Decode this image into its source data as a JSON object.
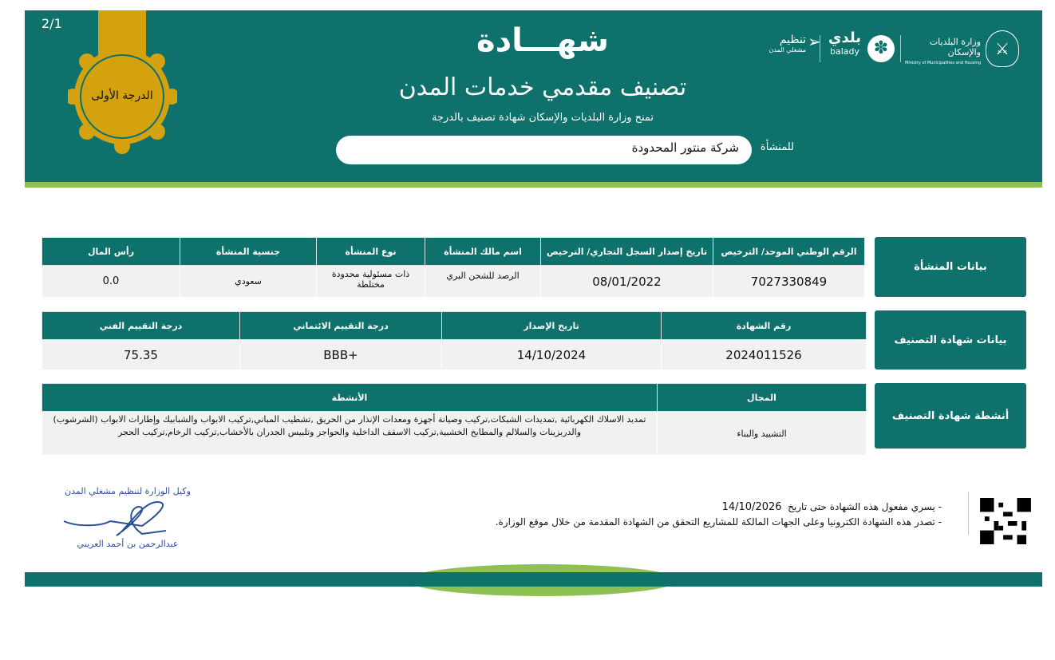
{
  "page_number": "2/1",
  "badge": {
    "grade": "الدرجة الأولى",
    "color": "#d4a10f"
  },
  "header": {
    "title": "شهـــادة",
    "subtitle": "تصنيف مقدمي خدمات المدن",
    "grant_text": "تمنح وزارة البلديات والإسكان شهادة تصنيف بالدرجة",
    "entity_label": "للمنشأة",
    "entity_name": "شركة منتور المحدودة"
  },
  "logos": {
    "tanzeem": "تنظيم",
    "tanzeem_sub": "مشغلي المدن",
    "balady_ar": "بلدي",
    "balady_en": "balady",
    "ministry_ar": "وزارة البلديات والإسكان",
    "ministry_en": "Ministry of Municipalities and Housing"
  },
  "entity_data": {
    "label": "بيانات المنشأة",
    "headers": [
      "الرقم الوطني الموحد/ الترخيص",
      "تاريخ إصدار السجل التجاري/ الترخيص",
      "اسم مالك المنشأة",
      "نوع المنشأة",
      "جنسية المنشأة",
      "رأس المال"
    ],
    "values": [
      "7027330849",
      "08/01/2022",
      "الرصد للشحن البري",
      "ذات مسئولية محدودة مختلطة",
      "سعودي",
      "0.0"
    ]
  },
  "certificate_data": {
    "label": "بيانات شهادة التصنيف",
    "headers": [
      "رقم الشهادة",
      "تاريخ الإصدار",
      "درجة التقييم الائتماني",
      "درجة التقييم الفني"
    ],
    "values": [
      "2024011526",
      "14/10/2024",
      "BBB+",
      "75.35"
    ]
  },
  "activities": {
    "label": "أنشطة شهادة التصنيف",
    "headers": [
      "المجال",
      "الأنشطة"
    ],
    "field": "التشييد والبناء",
    "text": "تمديد الاسلاك الكهربائية ,تمديدات الشبكات,تركيب وصيانة أجهزة ومعدات الإنذار من الحريق ,تشطيب المباني,تركيب الابواب والشبابيك وإطارات الابواب (الشرشوب) والدربزينات والسلالم والمطابخ الخشبية,تركيب الاسقف الداخلية والحواجز وتلبيس الجدران بالأخشاب,تركيب الرخام,تركيب الحجر"
  },
  "footer": {
    "validity": "- يسري مفعول هذه الشهادة حتى تاريخ",
    "validity_date": "14/10/2026",
    "note": "- تصدر هذه الشهادة الكترونيا وعلى الجهات المالكة للمشاريع التحقق من الشهادة المقدمة من خلال موقع الوزارة.",
    "signer_title": "وكيل الوزارة لتنظيم مشغلي المدن",
    "signer_name": "عبدالرحمن بن أحمد العريني"
  }
}
